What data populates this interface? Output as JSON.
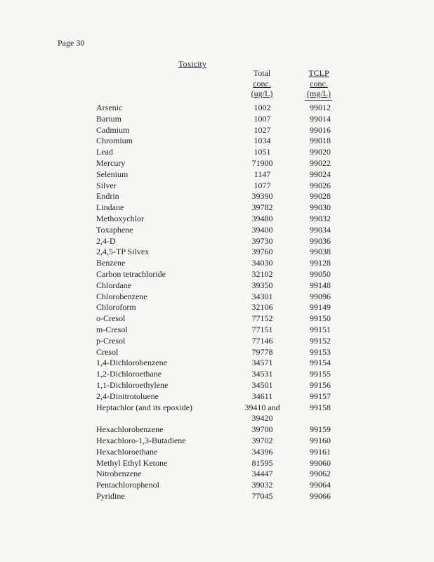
{
  "page_label": "Page 30",
  "title": "Toxicity",
  "columns": {
    "total": [
      "Total",
      "conc.",
      "(ug/L)"
    ],
    "tclp": [
      "TCLP",
      "conc.",
      "(mg/L)"
    ]
  },
  "rows": [
    {
      "name": "Arsenic",
      "total": "1002",
      "tclp": "99012"
    },
    {
      "name": "Barium",
      "total": "1007",
      "tclp": "99014"
    },
    {
      "name": "Cadmium",
      "total": "1027",
      "tclp": "99016"
    },
    {
      "name": "Chromium",
      "total": "1034",
      "tclp": "99018"
    },
    {
      "name": "Lead",
      "total": "1051",
      "tclp": "99020"
    },
    {
      "name": "Mercury",
      "total": "71900",
      "tclp": "99022"
    },
    {
      "name": "Selenium",
      "total": "1147",
      "tclp": "99024"
    },
    {
      "name": "Silver",
      "total": "1077",
      "tclp": "99026"
    },
    {
      "name": "Endrin",
      "total": "39390",
      "tclp": "99028"
    },
    {
      "name": "Lindane",
      "total": "39782",
      "tclp": "99030"
    },
    {
      "name": "Methoxychlor",
      "total": "39480",
      "tclp": "99032"
    },
    {
      "name": "Toxaphene",
      "total": "39400",
      "tclp": "99034"
    },
    {
      "name": "2,4-D",
      "total": "39730",
      "tclp": "99036"
    },
    {
      "name": "2,4,5-TP Silvex",
      "total": "39760",
      "tclp": "99038"
    },
    {
      "name": "Benzene",
      "total": "34030",
      "tclp": "99128"
    },
    {
      "name": "Carbon tetrachloride",
      "total": "32102",
      "tclp": "99050"
    },
    {
      "name": "Chlordane",
      "total": "39350",
      "tclp": "99148"
    },
    {
      "name": "Chlorobenzene",
      "total": "34301",
      "tclp": "99096"
    },
    {
      "name": "Chloroform",
      "total": "32106",
      "tclp": "99149"
    },
    {
      "name": "o-Cresol",
      "total": "77152",
      "tclp": "99150"
    },
    {
      "name": "m-Cresol",
      "total": "77151",
      "tclp": "99151"
    },
    {
      "name": "p-Cresol",
      "total": "77146",
      "tclp": "99152"
    },
    {
      "name": "Cresol",
      "total": "79778",
      "tclp": "99153"
    },
    {
      "name": "1,4-Dichlorobenzene",
      "total": "34571",
      "tclp": "99154"
    },
    {
      "name": "1,2-Dichloroethane",
      "total": "34531",
      "tclp": "99155"
    },
    {
      "name": "1,1-Dichloroethylene",
      "total": "34501",
      "tclp": "99156"
    },
    {
      "name": "2,4-Dinitrotoluene",
      "total": "34611",
      "tclp": "99157"
    },
    {
      "name": "Heptachlor (and its epoxide)",
      "total": "39410 and",
      "tclp": "99158"
    },
    {
      "name": "",
      "total": "39420",
      "tclp": ""
    },
    {
      "name": "Hexachlorobenzene",
      "total": "39700",
      "tclp": "99159"
    },
    {
      "name": "Hexachloro-1,3-Butadiene",
      "total": "39702",
      "tclp": "99160"
    },
    {
      "name": "Hexachloroethane",
      "total": "34396",
      "tclp": "99161"
    },
    {
      "name": "Methyl Ethyl Ketone",
      "total": "81595",
      "tclp": "99060"
    },
    {
      "name": "Nitrobenzene",
      "total": "34447",
      "tclp": "99062"
    },
    {
      "name": "Pentachlorophenol",
      "total": "39032",
      "tclp": "99064"
    },
    {
      "name": "Pyridine",
      "total": "77045",
      "tclp": "99066"
    }
  ]
}
